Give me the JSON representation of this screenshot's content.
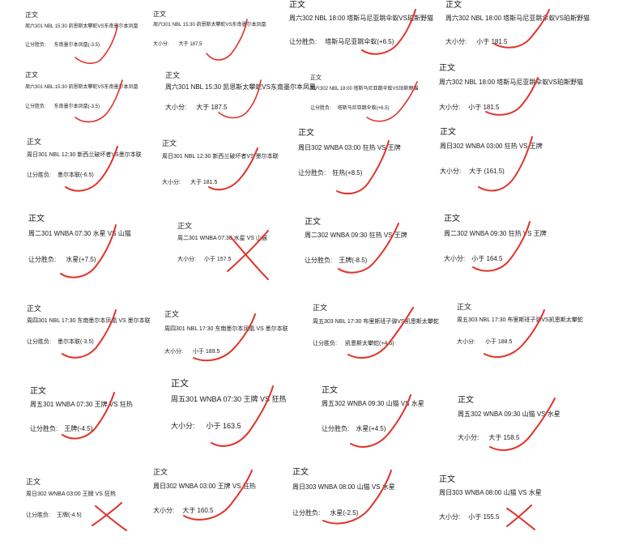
{
  "accent": "#e0332a",
  "cards": [
    {
      "title": "正文",
      "game": "周六301   NBL   15:30 凯恩斯太攀蛇VS东南墨尔本凤凰",
      "bet_label": "让分胜负:",
      "pick": "东南墨尔本凤凰(-3.5)",
      "mark": "check-mark-icon"
    },
    {
      "title": "正文",
      "game": "周六301   NBL   15:30 凯恩斯太攀蛇VS东南墨尔本凤凰",
      "bet_label": "大小分:",
      "pick": "大于 187.5",
      "mark": "check-mark-icon"
    },
    {
      "title": "正文",
      "game": "周六302   NBL   18:00 塔斯马尼亚跳伞蚁VS珀斯野猫",
      "bet_label": "让分胜负:",
      "pick": "塔斯马尼亚跳伞蚁(+6.5)",
      "mark": "check-mark-icon"
    },
    {
      "title": "正文",
      "game": "周六302   NBL   18:00 塔斯马尼亚跳伞蚁VS珀斯野猫",
      "bet_label": "大小分:",
      "pick": "小于 181.5",
      "mark": "check-mark-icon"
    },
    {
      "title": "正文",
      "game": "周六301   NBL   15:30 凯恩斯太攀蛇VS东南墨尔本凤凰",
      "bet_label": "让分胜负:",
      "pick": "东南墨尔本凤凰(-3.5)",
      "mark": "check-mark-icon"
    },
    {
      "title": "正文",
      "game": "周六301   NBL   15:30 凯恩斯太攀蛇VS东南墨尔本凤凰",
      "bet_label": "大小分:",
      "pick": "大于 187.5",
      "mark": "check-mark-icon"
    },
    {
      "title": "正文",
      "game": "周六302   NBL   18:00 塔斯马尼亚跳伞蚁VS珀斯野猫",
      "bet_label": "让分胜负:",
      "pick": "塔斯马尼亚跳伞蚁(+6.5)",
      "mark": "check-mark-icon"
    },
    {
      "title": "正文",
      "game": "周六302   NBL   18:00 塔斯马尼亚跳伞蚁VS珀斯野猫",
      "bet_label": "大小分:",
      "pick": "小于 181.5",
      "mark": "check-mark-icon"
    },
    {
      "title": "正文",
      "game": "周日301   NBL   12:30     新西兰破坏者VS墨尔本联",
      "bet_label": "让分胜负:",
      "pick": "墨尔本联(-6.5)",
      "mark": "check-mark-icon"
    },
    {
      "title": "正文",
      "game": "周日301   NBL   12:30 新西兰破坏者VS 墨尔本联",
      "bet_label": "大小分:",
      "pick": "大于 181.5",
      "mark": "check-mark-icon"
    },
    {
      "title": "正文",
      "game": "周日302   WNBA   03:00   狂热 VS   王牌",
      "bet_label": "让分胜负:",
      "pick": "狂热(+8.5)",
      "mark": "check-mark-icon"
    },
    {
      "title": "正文",
      "game": "周日302   WNBA   03:00   狂热 VS   王牌",
      "bet_label": "大小分:",
      "pick": "大于   (161.5)",
      "mark": "check-mark-icon"
    },
    {
      "title": "正文",
      "game": "周二301   WNBA   07:30   水星 VS   山猫",
      "bet_label": "让分胜负:",
      "pick": "水星(+7.5)",
      "mark": "check-mark-icon"
    },
    {
      "title": "正文",
      "game": "周二301   WNBA   07:30   水星 VS   山猫",
      "bet_label": "大小分:",
      "pick": "小于  157.5",
      "mark": "cross-mark-icon"
    },
    {
      "title": "正文",
      "game": "周二302   WNBA   09:30         狂热 VS   王牌",
      "bet_label": "让分胜负:",
      "pick": "王牌(-8.5)",
      "mark": "check-mark-icon"
    },
    {
      "title": "正文",
      "game": "周二302   WNBA   09:30   狂热 VS   王牌",
      "bet_label": "大小分:",
      "pick": "小于  164.5",
      "mark": "check-mark-icon"
    },
    {
      "title": "正文",
      "game": "周四301   NBL   17:30 东南墨尔本凤凰 VS 墨尔本联",
      "bet_label": "让分胜负:",
      "pick": "墨尔本联(-3.5)",
      "mark": "check-mark-icon"
    },
    {
      "title": "正文",
      "game": "周四301   NBL   17:30   东南墨尔本凤凰 VS 墨尔本联",
      "bet_label": "大小分:",
      "pick": "小于  189.5",
      "mark": "check-mark-icon"
    },
    {
      "title": "正文",
      "game": "周五303   NBL   17:30 布里斯班子弹VS凯恩斯太攀蛇",
      "bet_label": "让分胜负:",
      "pick": "凯恩斯太攀蛇(+4.5)",
      "mark": "check-mark-icon"
    },
    {
      "title": "正文",
      "game": "周五303   NBL   17:30 布里斯班子弹VS凯恩斯太攀蛇",
      "bet_label": "大小分:",
      "pick": "小于  188.5",
      "mark": "check-mark-icon"
    },
    {
      "title": "正文",
      "game": "周五301   WNBA   07:30   王牌 VS   狂热",
      "bet_label": "让分胜负:",
      "pick": "王牌(-4.5)",
      "mark": "check-mark-icon"
    },
    {
      "title": "正文",
      "game": "周五301   WNBA   07:30   王牌 VS   狂热",
      "bet_label": "大小分:",
      "pick": "小于  163.5",
      "mark": "check-mark-icon"
    },
    {
      "title": "正文",
      "game": "周五302   WNBA   09:30   山猫 VS   水星",
      "bet_label": "让分胜负:",
      "pick": "水星(+4.5)",
      "mark": "check-mark-icon"
    },
    {
      "title": "正文",
      "game": "周五302   WNBA   09:30   山猫 VS   水星",
      "bet_label": "大小分:",
      "pick": "大于  158.5",
      "mark": "check-mark-icon"
    },
    {
      "title": "正文",
      "game": "周日302   WNBA   03:00   王牌 VS   狂热",
      "bet_label": "让分胜负:",
      "pick": "王牌(-4.5)",
      "mark": "cross-mark-icon"
    },
    {
      "title": "正文",
      "game": "周日302   WNBA   03:00   王牌 VS   狂热",
      "bet_label": "大小分:",
      "pick": "大于  160.5",
      "mark": "check-mark-icon"
    },
    {
      "title": "正文",
      "game": "周日303   WNBA   08:00   山猫 VS   水星",
      "bet_label": "让分胜负:",
      "pick": "水星(-2.5)",
      "mark": "check-mark-icon"
    },
    {
      "title": "正文",
      "game": "周日303   WNBA   08:00   山猫 VS   水星",
      "bet_label": "大小分:",
      "pick": "小于  155.5",
      "mark": "cross-mark-icon"
    }
  ]
}
